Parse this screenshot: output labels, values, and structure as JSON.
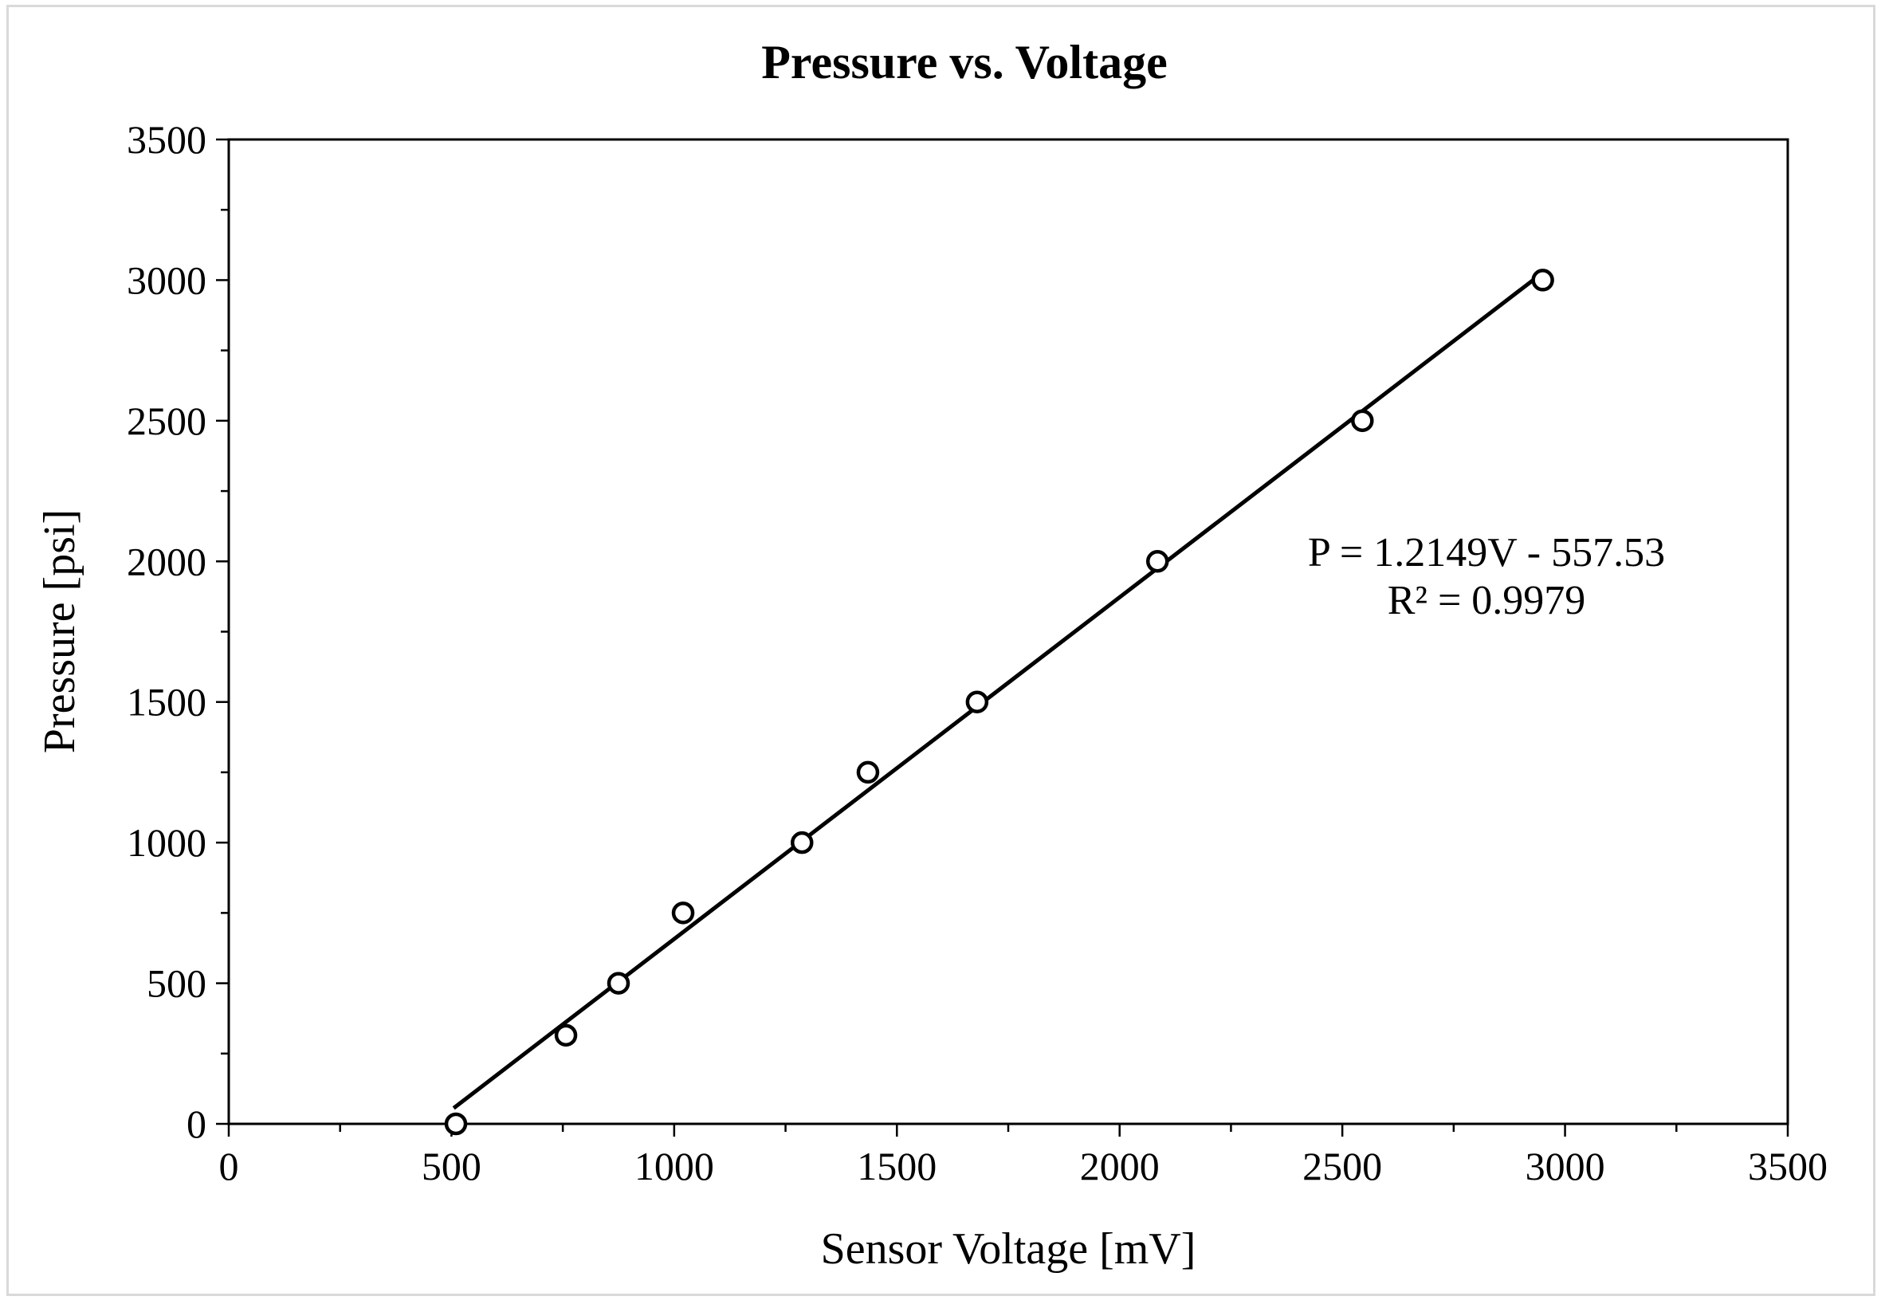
{
  "chart_data": {
    "type": "scatter",
    "title": "Pressure vs. Voltage",
    "xlabel": "Sensor Voltage [mV]",
    "ylabel": "Pressure [psi]",
    "xlim": [
      0,
      3500
    ],
    "ylim": [
      0,
      3500
    ],
    "x_major_ticks": [
      0,
      500,
      1000,
      1500,
      2000,
      2500,
      3000,
      3500
    ],
    "y_major_ticks": [
      0,
      500,
      1000,
      1500,
      2000,
      2500,
      3000,
      3500
    ],
    "x_minor_step": 250,
    "y_minor_step": 250,
    "grid": false,
    "series": [
      {
        "x": [
          510,
          757,
          875,
          1020,
          1287,
          1435,
          1680,
          2085,
          2545,
          2950
        ],
        "y": [
          0,
          315,
          500,
          750,
          1000,
          1250,
          1500,
          2000,
          2500,
          3000
        ]
      }
    ],
    "trendline": {
      "slope": 1.2149,
      "intercept": -557.53,
      "x_range": [
        505,
        2955
      ]
    },
    "annotations": [
      "P = 1.2149V - 557.53",
      "R² = 0.9979"
    ],
    "marker_color": "#000000",
    "line_color": "#000000"
  }
}
